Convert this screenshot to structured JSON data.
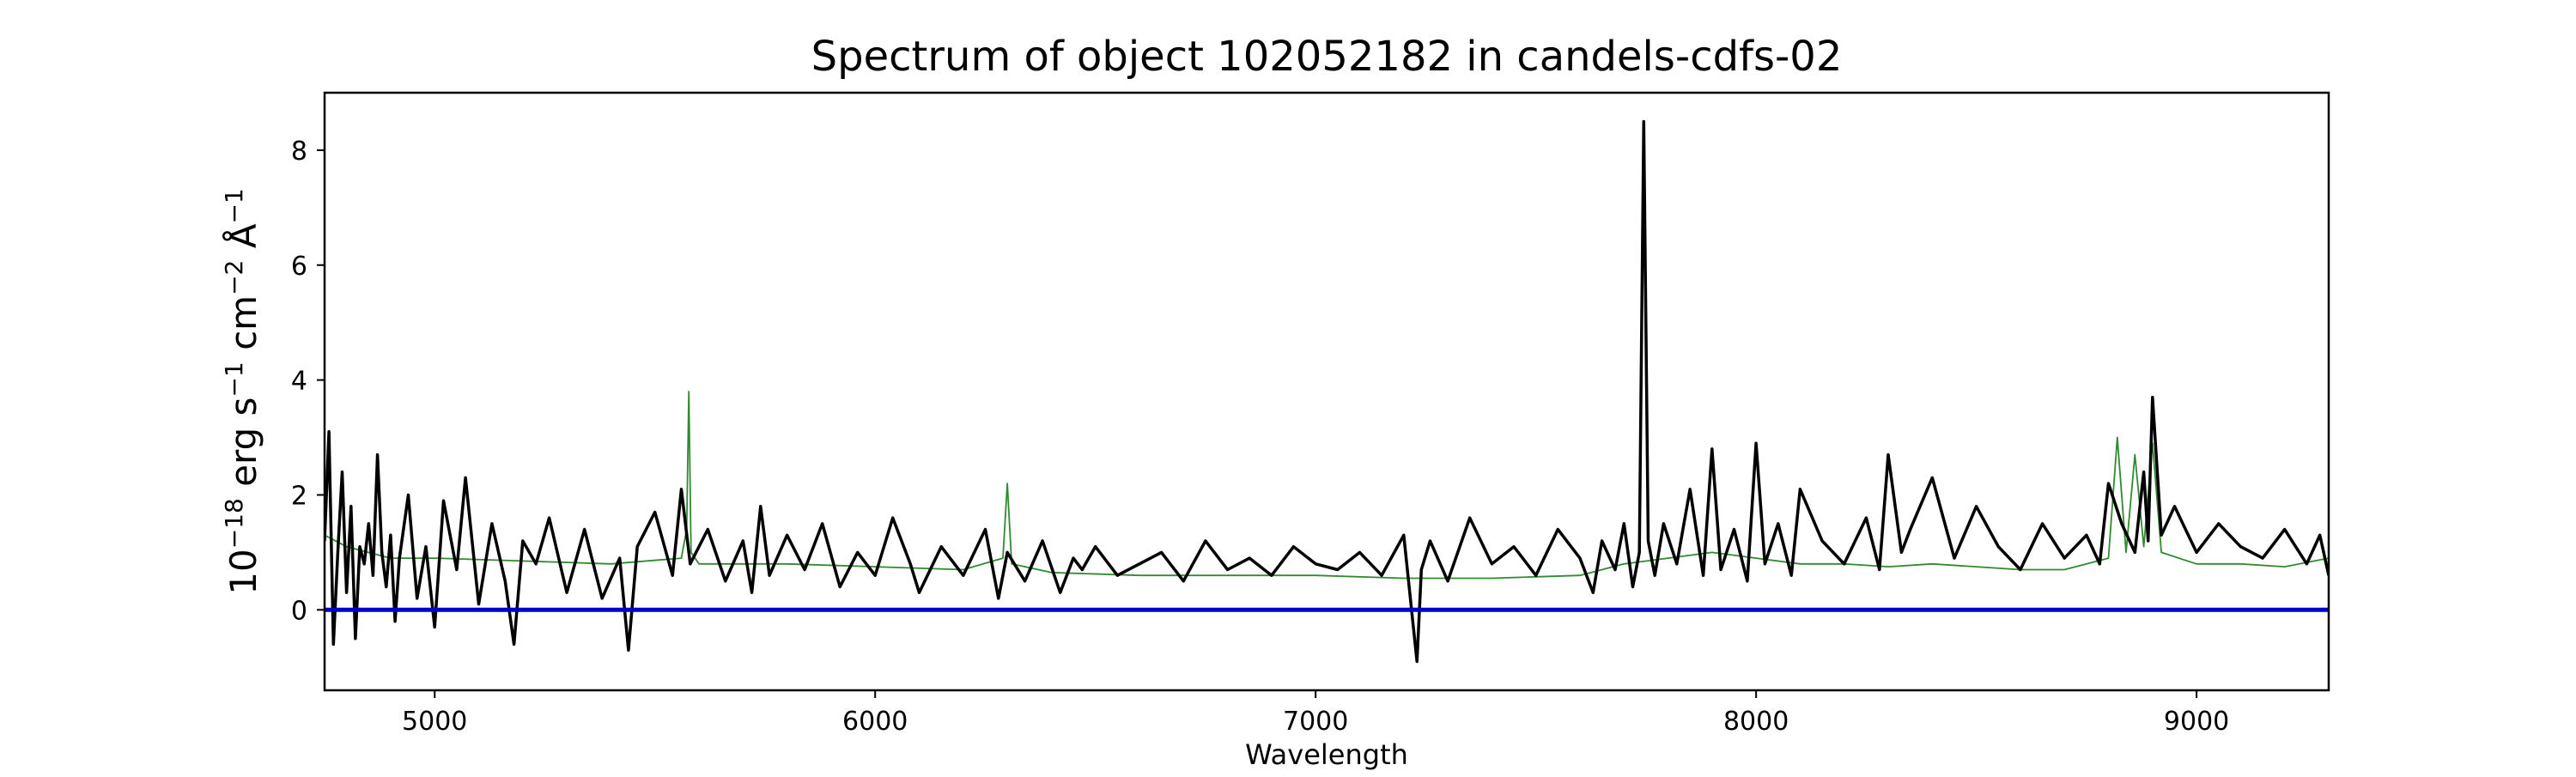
{
  "chart_data": {
    "type": "line",
    "title": "Spectrum of object 102052182 in candels-cdfs-02",
    "xlabel": "Wavelength",
    "ylabel": {
      "base": "10",
      "exp1": "−18",
      "mid1": " erg s",
      "exp2": "−1",
      "mid2": " cm",
      "exp3": "−2",
      "mid3": " Å",
      "exp4": "−1"
    },
    "xlim": [
      4750,
      9300
    ],
    "ylim": [
      -1.4,
      9.0
    ],
    "xticks": [
      5000,
      6000,
      7000,
      8000,
      9000
    ],
    "yticks": [
      0,
      2,
      4,
      6,
      8
    ],
    "grid": false,
    "colors": {
      "flux": "#000000",
      "model": "#2e8b2e",
      "zero": "#0000cc"
    },
    "series": [
      {
        "kind": "flux",
        "x": [
          4750,
          4760,
          4770,
          4780,
          4790,
          4800,
          4810,
          4820,
          4830,
          4840,
          4850,
          4860,
          4870,
          4880,
          4890,
          4900,
          4910,
          4920,
          4940,
          4960,
          4980,
          5000,
          5020,
          5050,
          5070,
          5100,
          5130,
          5160,
          5180,
          5200,
          5230,
          5260,
          5300,
          5340,
          5380,
          5420,
          5440,
          5460,
          5500,
          5540,
          5560,
          5580,
          5620,
          5660,
          5700,
          5720,
          5740,
          5760,
          5800,
          5840,
          5880,
          5920,
          5960,
          6000,
          6040,
          6080,
          6100,
          6150,
          6200,
          6250,
          6280,
          6300,
          6340,
          6380,
          6420,
          6450,
          6470,
          6500,
          6550,
          6600,
          6650,
          6700,
          6750,
          6800,
          6850,
          6900,
          6950,
          7000,
          7050,
          7100,
          7150,
          7200,
          7230,
          7240,
          7260,
          7300,
          7350,
          7400,
          7450,
          7500,
          7550,
          7600,
          7630,
          7650,
          7680,
          7700,
          7720,
          7735,
          7745,
          7755,
          7770,
          7790,
          7820,
          7850,
          7880,
          7900,
          7920,
          7950,
          7980,
          8000,
          8020,
          8050,
          8080,
          8100,
          8150,
          8200,
          8250,
          8280,
          8300,
          8330,
          8350,
          8400,
          8450,
          8500,
          8550,
          8600,
          8650,
          8700,
          8750,
          8780,
          8800,
          8830,
          8860,
          8880,
          8890,
          8900,
          8920,
          8950,
          9000,
          9050,
          9100,
          9150,
          9200,
          9250,
          9280,
          9300
        ],
        "y": [
          1.2,
          3.1,
          -0.6,
          1.0,
          2.4,
          0.3,
          1.8,
          -0.5,
          1.1,
          0.8,
          1.5,
          0.6,
          2.7,
          1.0,
          0.4,
          1.3,
          -0.2,
          0.9,
          2.0,
          0.2,
          1.1,
          -0.3,
          1.9,
          0.7,
          2.3,
          0.1,
          1.5,
          0.5,
          -0.6,
          1.2,
          0.8,
          1.6,
          0.3,
          1.4,
          0.2,
          0.9,
          -0.7,
          1.1,
          1.7,
          0.6,
          2.1,
          0.8,
          1.4,
          0.5,
          1.2,
          0.3,
          1.8,
          0.6,
          1.3,
          0.7,
          1.5,
          0.4,
          1.0,
          0.6,
          1.6,
          0.8,
          0.3,
          1.1,
          0.6,
          1.4,
          0.2,
          1.0,
          0.5,
          1.2,
          0.3,
          0.9,
          0.7,
          1.1,
          0.6,
          0.8,
          1.0,
          0.5,
          1.2,
          0.7,
          0.9,
          0.6,
          1.1,
          0.8,
          0.7,
          1.0,
          0.6,
          1.3,
          -0.9,
          0.7,
          1.2,
          0.5,
          1.6,
          0.8,
          1.1,
          0.6,
          1.4,
          0.9,
          0.3,
          1.2,
          0.7,
          1.5,
          0.4,
          1.0,
          8.5,
          1.2,
          0.6,
          1.5,
          0.8,
          2.1,
          0.6,
          2.8,
          0.7,
          1.4,
          0.5,
          2.9,
          0.8,
          1.5,
          0.6,
          2.1,
          1.2,
          0.8,
          1.6,
          0.7,
          2.7,
          1.0,
          1.4,
          2.3,
          0.9,
          1.8,
          1.1,
          0.7,
          1.5,
          0.9,
          1.3,
          0.8,
          2.2,
          1.5,
          1.0,
          2.4,
          1.2,
          3.7,
          1.3,
          1.8,
          1.0,
          1.5,
          1.1,
          0.9,
          1.4,
          0.8,
          1.3,
          0.6
        ]
      },
      {
        "kind": "model",
        "x": [
          4750,
          4800,
          4900,
          5000,
          5200,
          5400,
          5560,
          5572,
          5577,
          5582,
          5600,
          5800,
          6000,
          6200,
          6290,
          6300,
          6310,
          6400,
          6600,
          6800,
          7000,
          7200,
          7400,
          7600,
          7700,
          7800,
          7900,
          8000,
          8100,
          8200,
          8300,
          8400,
          8500,
          8600,
          8700,
          8800,
          8820,
          8840,
          8860,
          8880,
          8900,
          8920,
          9000,
          9100,
          9200,
          9300
        ],
        "y": [
          1.3,
          1.1,
          0.9,
          0.9,
          0.85,
          0.8,
          0.9,
          1.4,
          3.8,
          1.0,
          0.8,
          0.8,
          0.75,
          0.7,
          0.9,
          2.2,
          0.8,
          0.65,
          0.6,
          0.6,
          0.6,
          0.55,
          0.55,
          0.6,
          0.8,
          0.9,
          1.0,
          0.9,
          0.8,
          0.8,
          0.75,
          0.8,
          0.75,
          0.7,
          0.7,
          0.9,
          3.0,
          1.0,
          2.7,
          1.1,
          2.9,
          1.0,
          0.8,
          0.8,
          0.75,
          0.9
        ]
      },
      {
        "kind": "zero",
        "x": [
          4750,
          9300
        ],
        "y": [
          0,
          0
        ]
      }
    ]
  }
}
